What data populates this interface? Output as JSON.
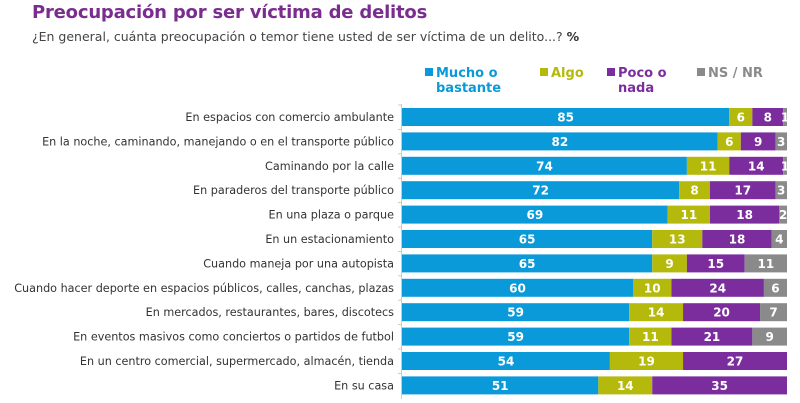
{
  "header": {
    "title": "Preocupación por ser víctima de delitos",
    "subtitle": "¿En general, cuánta preocupación o temor tiene usted de ser víctima de un delito...?",
    "unit": "%"
  },
  "chart_data": {
    "type": "bar",
    "orientation": "horizontal",
    "stacked": true,
    "title": "Preocupación por ser víctima de delitos",
    "subtitle": "¿En general, cuánta preocupación o temor tiene usted de ser víctima de un delito...? %",
    "xlabel": "",
    "ylabel": "",
    "xlim": [
      0,
      100
    ],
    "grid": false,
    "legend_position": "top-right",
    "categories": [
      "En espacios con comercio ambulante",
      "En la noche, caminando, manejando o en el transporte público",
      "Caminando por la calle",
      "En paraderos del transporte público",
      "En una plaza o parque",
      "En un estacionamiento",
      "Cuando maneja por una autopista",
      "Cuando hacer deporte en espacios públicos, calles, canchas, plazas",
      "En mercados, restaurantes, bares, discotecs",
      "En eventos masivos como conciertos o partidos de futbol",
      "En un centro comercial, supermercado, almacén, tienda",
      "En su casa"
    ],
    "series": [
      {
        "name": "Mucho o bastante",
        "legend_lines": [
          "Mucho o",
          "bastante"
        ],
        "color": "#0a9ad9",
        "values": [
          85,
          82,
          74,
          72,
          69,
          65,
          65,
          60,
          59,
          59,
          54,
          51
        ]
      },
      {
        "name": "Algo",
        "legend_lines": [
          "Algo"
        ],
        "color": "#b5b90c",
        "values": [
          6,
          6,
          11,
          8,
          11,
          13,
          9,
          10,
          14,
          11,
          19,
          14
        ]
      },
      {
        "name": "Poco o nada",
        "legend_lines": [
          "Poco o",
          "nada"
        ],
        "color": "#7b2d9e",
        "values": [
          8,
          9,
          14,
          17,
          18,
          18,
          15,
          24,
          20,
          21,
          27,
          35
        ]
      },
      {
        "name": "NS / NR",
        "legend_lines": [
          "NS / NR"
        ],
        "color": "#8a8a8a",
        "values": [
          1,
          3,
          1,
          3,
          2,
          4,
          11,
          6,
          7,
          9,
          0,
          0
        ]
      }
    ]
  }
}
